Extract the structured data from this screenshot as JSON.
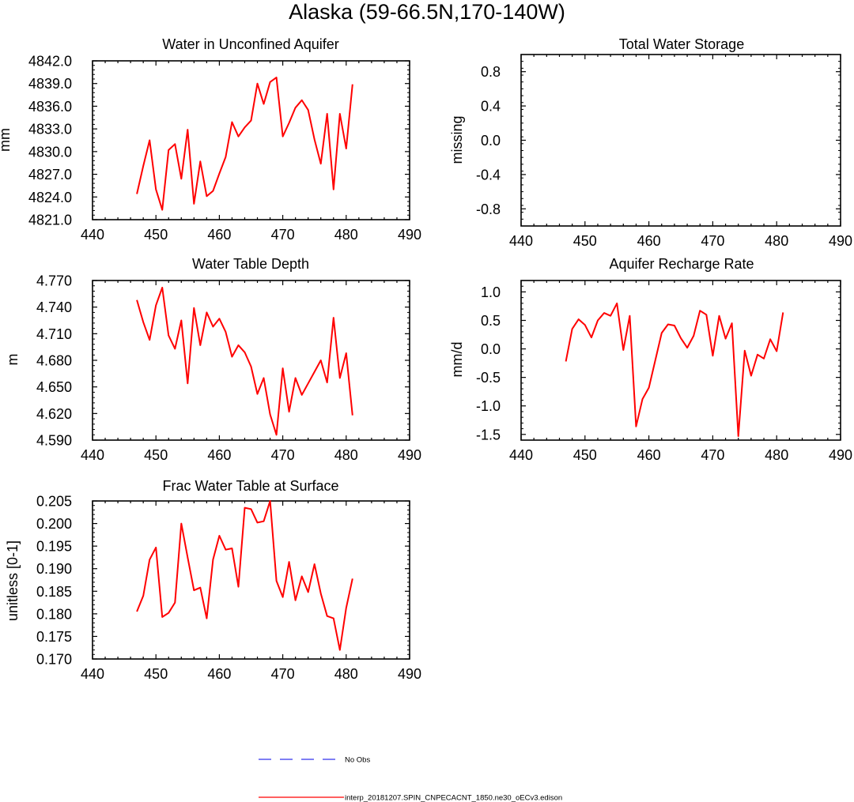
{
  "page_title": "Alaska (59-66.5N,170-140W)",
  "legend": {
    "obs_label": "No Obs",
    "model_label": "interp_20181207.SPIN_CNPECACNT_1850.ne30_oECv3.edison",
    "obs_color": "#3333ee",
    "model_color": "#ff0000"
  },
  "chart_data": [
    {
      "id": "wa",
      "type": "line",
      "title": "Water in Unconfined Aquifer",
      "ylabel": "mm",
      "xlim": [
        440,
        490
      ],
      "xticks": [
        440,
        450,
        460,
        470,
        480,
        490
      ],
      "ylim": [
        4821,
        4842
      ],
      "yticks": [
        4821,
        4824,
        4827,
        4830,
        4833,
        4836,
        4839,
        4842
      ],
      "ytick_labels": [
        "4821.0",
        "4824.0",
        "4827.0",
        "4830.0",
        "4833.0",
        "4836.0",
        "4839.0",
        "4842.0"
      ],
      "series": [
        {
          "name": "interp_20181207.SPIN_CNPECACNT_1850.ne30_oECv3.edison",
          "color": "#ff0000",
          "x": [
            447,
            448,
            449,
            450,
            451,
            452,
            453,
            454,
            455,
            456,
            457,
            458,
            459,
            460,
            461,
            462,
            463,
            464,
            465,
            466,
            467,
            468,
            469,
            470,
            471,
            472,
            473,
            474,
            475,
            476,
            477,
            478,
            479,
            480,
            481
          ],
          "y": [
            4824.4,
            4828.1,
            4831.5,
            4825.0,
            4822.3,
            4830.2,
            4831.0,
            4826.4,
            4832.9,
            4823.1,
            4828.7,
            4824.1,
            4824.8,
            4827.1,
            4829.3,
            4833.9,
            4832.0,
            4833.2,
            4834.1,
            4839.0,
            4836.3,
            4839.2,
            4839.8,
            4832.0,
            4833.8,
            4835.8,
            4836.8,
            4835.5,
            4831.6,
            4828.4,
            4835.0,
            4825.0,
            4835.0,
            4830.4,
            4838.9
          ]
        }
      ]
    },
    {
      "id": "tws",
      "type": "line",
      "title": "Total Water Storage",
      "ylabel": "missing",
      "xlim": [
        440,
        490
      ],
      "xticks": [
        440,
        450,
        460,
        470,
        480,
        490
      ],
      "ylim": [
        -1.0,
        1.0
      ],
      "yticks": [
        -0.8,
        -0.4,
        0.0,
        0.4,
        0.8
      ],
      "ytick_labels": [
        "-0.8",
        "-0.4",
        "0.0",
        "0.4",
        "0.8"
      ],
      "series": []
    },
    {
      "id": "wt",
      "type": "line",
      "title": "Water Table Depth",
      "ylabel": "m",
      "xlim": [
        440,
        490
      ],
      "xticks": [
        440,
        450,
        460,
        470,
        480,
        490
      ],
      "ylim": [
        4.59,
        4.77
      ],
      "yticks": [
        4.59,
        4.62,
        4.65,
        4.68,
        4.71,
        4.74,
        4.77
      ],
      "ytick_labels": [
        "4.590",
        "4.620",
        "4.650",
        "4.680",
        "4.710",
        "4.740",
        "4.770"
      ],
      "series": [
        {
          "name": "interp_20181207.SPIN_CNPECACNT_1850.ne30_oECv3.edison",
          "color": "#ff0000",
          "x": [
            447,
            448,
            449,
            450,
            451,
            452,
            453,
            454,
            455,
            456,
            457,
            458,
            459,
            460,
            461,
            462,
            463,
            464,
            465,
            466,
            467,
            468,
            469,
            470,
            471,
            472,
            473,
            474,
            475,
            476,
            477,
            478,
            479,
            480,
            481
          ],
          "y": [
            4.748,
            4.723,
            4.703,
            4.742,
            4.762,
            4.708,
            4.693,
            4.725,
            4.654,
            4.739,
            4.697,
            4.734,
            4.718,
            4.727,
            4.712,
            4.684,
            4.697,
            4.689,
            4.673,
            4.642,
            4.66,
            4.619,
            4.596,
            4.671,
            4.622,
            4.66,
            4.641,
            4.654,
            4.667,
            4.68,
            4.655,
            4.728,
            4.66,
            4.688,
            4.618
          ]
        }
      ]
    },
    {
      "id": "qcharge",
      "type": "line",
      "title": "Aquifer Recharge Rate",
      "ylabel": "mm/d",
      "xlim": [
        440,
        490
      ],
      "xticks": [
        440,
        450,
        460,
        470,
        480,
        490
      ],
      "ylim": [
        -1.6,
        1.2
      ],
      "yticks": [
        -1.5,
        -1.0,
        -0.5,
        0.0,
        0.5,
        1.0
      ],
      "ytick_labels": [
        "-1.5",
        "-1.0",
        "-0.5",
        "0.0",
        "0.5",
        "1.0"
      ],
      "series": [
        {
          "name": "interp_20181207.SPIN_CNPECACNT_1850.ne30_oECv3.edison",
          "color": "#ff0000",
          "x": [
            447,
            448,
            449,
            450,
            451,
            452,
            453,
            454,
            455,
            456,
            457,
            458,
            459,
            460,
            461,
            462,
            463,
            464,
            465,
            466,
            467,
            468,
            469,
            470,
            471,
            472,
            473,
            474,
            475,
            476,
            477,
            478,
            479,
            480,
            481
          ],
          "y": [
            -0.22,
            0.35,
            0.52,
            0.42,
            0.2,
            0.5,
            0.63,
            0.58,
            0.8,
            -0.02,
            0.58,
            -1.36,
            -0.88,
            -0.68,
            -0.2,
            0.28,
            0.43,
            0.41,
            0.19,
            0.02,
            0.23,
            0.67,
            0.6,
            -0.12,
            0.58,
            0.18,
            0.45,
            -1.53,
            -0.03,
            -0.47,
            -0.1,
            -0.17,
            0.17,
            -0.04,
            0.64
          ]
        }
      ]
    },
    {
      "id": "fwet",
      "type": "line",
      "title": "Frac Water Table at Surface",
      "ylabel": "unitless [0-1]",
      "xlim": [
        440,
        490
      ],
      "xticks": [
        440,
        450,
        460,
        470,
        480,
        490
      ],
      "ylim": [
        0.17,
        0.205
      ],
      "yticks": [
        0.17,
        0.175,
        0.18,
        0.185,
        0.19,
        0.195,
        0.2,
        0.205
      ],
      "ytick_labels": [
        "0.170",
        "0.175",
        "0.180",
        "0.185",
        "0.190",
        "0.195",
        "0.200",
        "0.205"
      ],
      "series": [
        {
          "name": "interp_20181207.SPIN_CNPECACNT_1850.ne30_oECv3.edison",
          "color": "#ff0000",
          "x": [
            447,
            448,
            449,
            450,
            451,
            452,
            453,
            454,
            455,
            456,
            457,
            458,
            459,
            460,
            461,
            462,
            463,
            464,
            465,
            466,
            467,
            468,
            469,
            470,
            471,
            472,
            473,
            474,
            475,
            476,
            477,
            478,
            479,
            480,
            481
          ],
          "y": [
            0.1805,
            0.184,
            0.192,
            0.1947,
            0.1793,
            0.1802,
            0.1825,
            0.2,
            0.1925,
            0.1852,
            0.1858,
            0.179,
            0.192,
            0.1973,
            0.1942,
            0.1945,
            0.186,
            0.2035,
            0.2032,
            0.2002,
            0.2005,
            0.205,
            0.1873,
            0.1837,
            0.1915,
            0.183,
            0.1883,
            0.1848,
            0.191,
            0.1845,
            0.1795,
            0.179,
            0.172,
            0.1813,
            0.1878
          ]
        }
      ]
    }
  ]
}
